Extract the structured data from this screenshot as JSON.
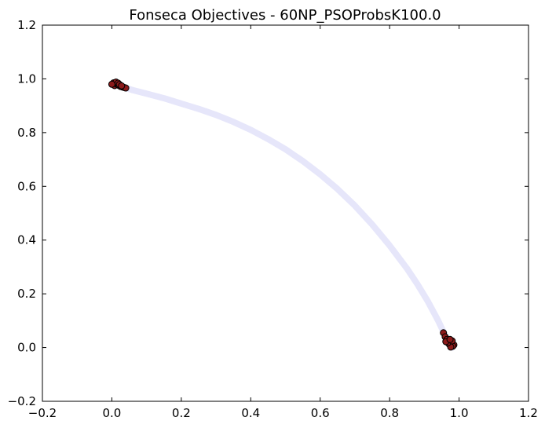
{
  "chart_data": {
    "type": "scatter",
    "title": "Fonseca Objectives - 60NP_PSOProbsK100.0",
    "xlabel": "",
    "ylabel": "",
    "xlim": [
      -0.2,
      1.2
    ],
    "ylim": [
      -0.2,
      1.2
    ],
    "xticks": [
      "−0.2",
      "0.0",
      "0.2",
      "0.4",
      "0.6",
      "0.8",
      "1.0",
      "1.2"
    ],
    "yticks": [
      "−0.2",
      "0.0",
      "0.2",
      "0.4",
      "0.6",
      "0.8",
      "1.0",
      "1.2"
    ],
    "grid": false,
    "colors": {
      "front": "#e6e6fa",
      "points": "#8b1a1a",
      "edge": "#000000"
    },
    "series": [
      {
        "values": [
          [
            0.0,
            0.982
          ],
          [
            0.02,
            0.975
          ],
          [
            0.06,
            0.958
          ],
          [
            0.1,
            0.945
          ],
          [
            0.15,
            0.928
          ],
          [
            0.2,
            0.908
          ],
          [
            0.25,
            0.888
          ],
          [
            0.3,
            0.866
          ],
          [
            0.35,
            0.84
          ],
          [
            0.4,
            0.81
          ],
          [
            0.45,
            0.776
          ],
          [
            0.5,
            0.738
          ],
          [
            0.55,
            0.694
          ],
          [
            0.6,
            0.645
          ],
          [
            0.65,
            0.59
          ],
          [
            0.7,
            0.528
          ],
          [
            0.75,
            0.458
          ],
          [
            0.8,
            0.38
          ],
          [
            0.85,
            0.294
          ],
          [
            0.88,
            0.236
          ],
          [
            0.91,
            0.172
          ],
          [
            0.94,
            0.1
          ],
          [
            0.96,
            0.045
          ],
          [
            0.98,
            0.0
          ]
        ]
      },
      {
        "values": [
          [
            0.005,
            0.985
          ],
          [
            0.01,
            0.982
          ],
          [
            0.008,
            0.975
          ],
          [
            0.015,
            0.98
          ],
          [
            0.02,
            0.976
          ],
          [
            0.012,
            0.988
          ],
          [
            0.018,
            0.984
          ],
          [
            0.025,
            0.972
          ],
          [
            0.03,
            0.97
          ],
          [
            0.035,
            0.968
          ],
          [
            0.04,
            0.966
          ],
          [
            0.022,
            0.979
          ],
          [
            0.0,
            0.98
          ],
          [
            0.028,
            0.974
          ],
          [
            0.955,
            0.055
          ],
          [
            0.96,
            0.04
          ],
          [
            0.965,
            0.03
          ],
          [
            0.97,
            0.025
          ],
          [
            0.975,
            0.02
          ],
          [
            0.98,
            0.015
          ],
          [
            0.985,
            0.01
          ],
          [
            0.972,
            0.012
          ],
          [
            0.978,
            0.008
          ],
          [
            0.982,
            0.005
          ],
          [
            0.976,
            0.002
          ],
          [
            0.968,
            0.018
          ],
          [
            0.962,
            0.022
          ],
          [
            0.98,
            0.025
          ],
          [
            0.974,
            0.03
          ]
        ]
      }
    ]
  }
}
